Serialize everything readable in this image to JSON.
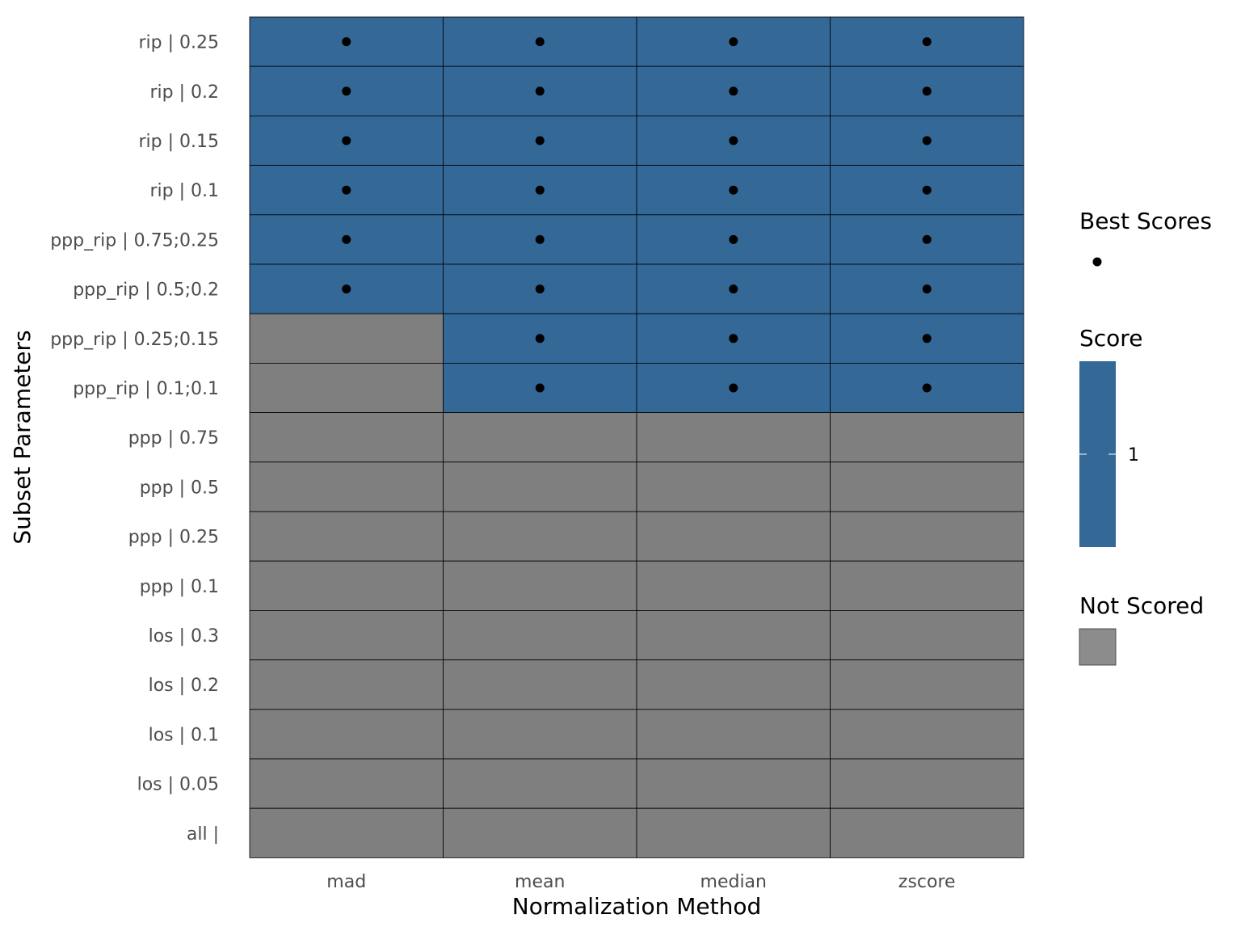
{
  "chart_data": {
    "type": "heatmap",
    "xlabel": "Normalization Method",
    "ylabel": "Subset Parameters",
    "x_categories": [
      "mad",
      "mean",
      "median",
      "zscore"
    ],
    "y_categories": [
      "rip | 0.25",
      "rip | 0.2",
      "rip | 0.15",
      "rip | 0.1",
      "ppp_rip | 0.75;0.25",
      "ppp_rip | 0.5;0.2",
      "ppp_rip | 0.25;0.15",
      "ppp_rip | 0.1;0.1",
      "ppp | 0.75",
      "ppp | 0.5",
      "ppp | 0.25",
      "ppp | 0.1",
      "los | 0.3",
      "los | 0.2",
      "los | 0.1",
      "los | 0.05",
      "all |"
    ],
    "scores": [
      [
        1,
        1,
        1,
        1
      ],
      [
        1,
        1,
        1,
        1
      ],
      [
        1,
        1,
        1,
        1
      ],
      [
        1,
        1,
        1,
        1
      ],
      [
        1,
        1,
        1,
        1
      ],
      [
        1,
        1,
        1,
        1
      ],
      [
        null,
        1,
        1,
        1
      ],
      [
        null,
        1,
        1,
        1
      ],
      [
        null,
        null,
        null,
        null
      ],
      [
        null,
        null,
        null,
        null
      ],
      [
        null,
        null,
        null,
        null
      ],
      [
        null,
        null,
        null,
        null
      ],
      [
        null,
        null,
        null,
        null
      ],
      [
        null,
        null,
        null,
        null
      ],
      [
        null,
        null,
        null,
        null
      ],
      [
        null,
        null,
        null,
        null
      ],
      [
        null,
        null,
        null,
        null
      ]
    ],
    "best_scores": [
      [
        true,
        true,
        true,
        true
      ],
      [
        true,
        true,
        true,
        true
      ],
      [
        true,
        true,
        true,
        true
      ],
      [
        true,
        true,
        true,
        true
      ],
      [
        true,
        true,
        true,
        true
      ],
      [
        true,
        true,
        true,
        true
      ],
      [
        false,
        true,
        true,
        true
      ],
      [
        false,
        true,
        true,
        true
      ],
      [
        false,
        false,
        false,
        false
      ],
      [
        false,
        false,
        false,
        false
      ],
      [
        false,
        false,
        false,
        false
      ],
      [
        false,
        false,
        false,
        false
      ],
      [
        false,
        false,
        false,
        false
      ],
      [
        false,
        false,
        false,
        false
      ],
      [
        false,
        false,
        false,
        false
      ],
      [
        false,
        false,
        false,
        false
      ],
      [
        false,
        false,
        false,
        false
      ]
    ],
    "legend": {
      "best_scores_title": "Best Scores",
      "score_title": "Score",
      "score_tick": "1",
      "not_scored_title": "Not Scored",
      "placement": "right"
    },
    "colors": {
      "scored": "#336897",
      "not_scored": "#7f7f7f",
      "not_scored_legend": "#8c8c8c",
      "cell_border": "#000000",
      "best_point": "#000000"
    },
    "grid": false
  }
}
